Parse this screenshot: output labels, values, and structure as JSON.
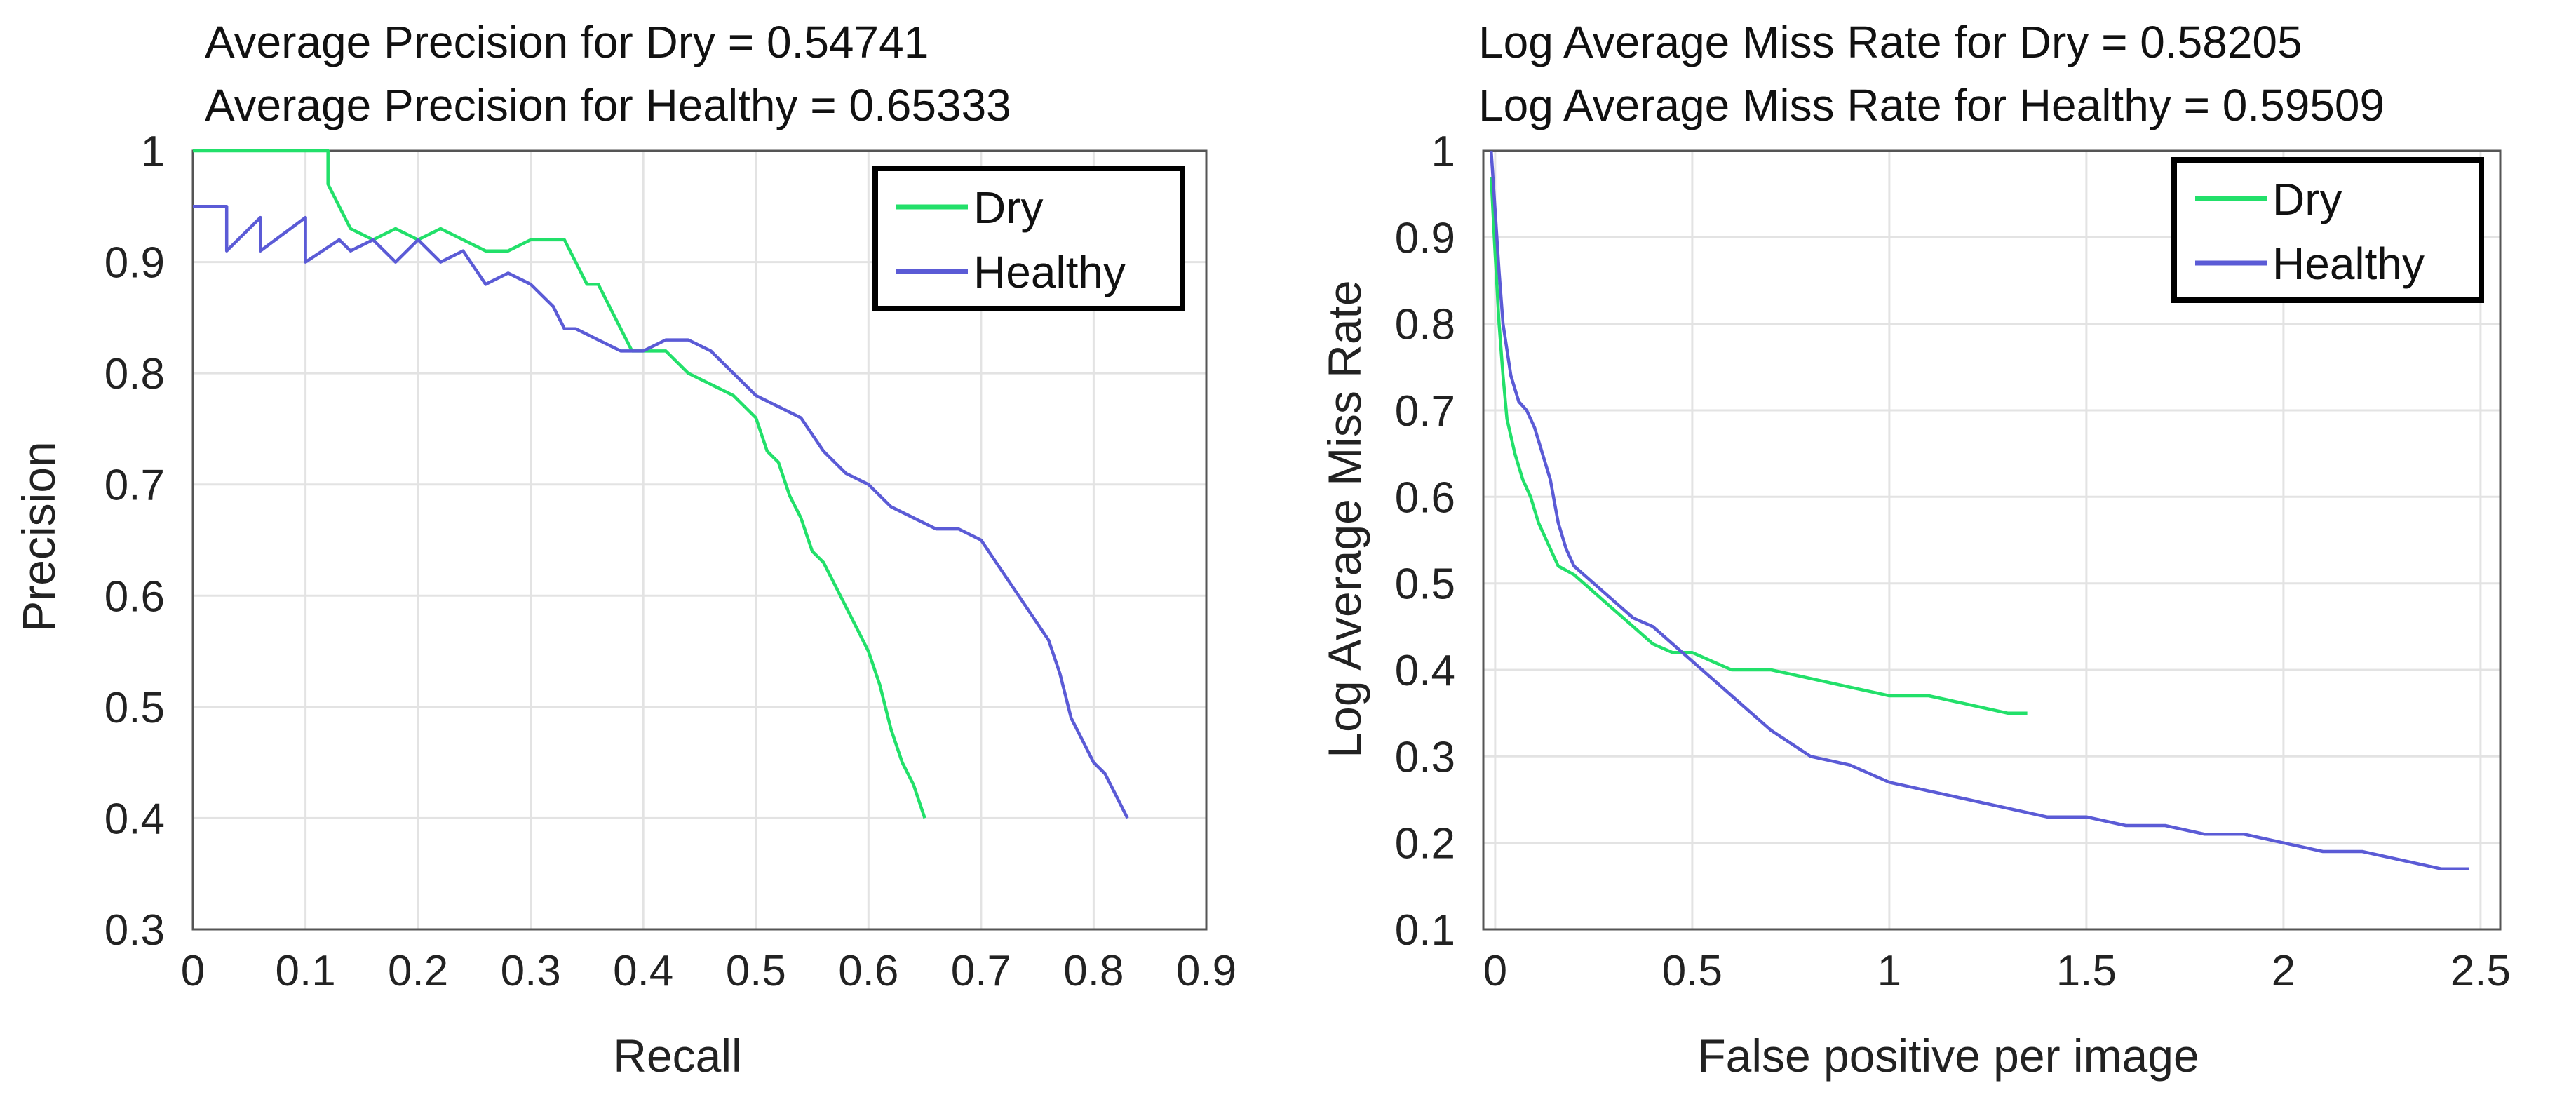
{
  "chart_data": [
    {
      "type": "line",
      "title": [
        "Average Precision for Dry = 0.54741",
        "Average Precision for Healthy = 0.65333"
      ],
      "xlabel": "Recall",
      "ylabel": "Precision",
      "xlim": [
        0,
        0.9
      ],
      "ylim": [
        0.3,
        1
      ],
      "xticks": [
        0,
        0.1,
        0.2,
        0.3,
        0.4,
        0.5,
        0.6,
        0.7,
        0.8,
        0.9
      ],
      "xtick_labels": [
        "0",
        "0.1",
        "0.2",
        "0.3",
        "0.4",
        "0.5",
        "0.6",
        "0.7",
        "0.8",
        "0.9"
      ],
      "yticks": [
        0.3,
        0.4,
        0.5,
        0.6,
        0.7,
        0.8,
        0.9,
        1
      ],
      "ytick_labels": [
        "0.3",
        "0.4",
        "0.5",
        "0.6",
        "0.7",
        "0.8",
        "0.9",
        "1"
      ],
      "grid": true,
      "legend_position": "top-right",
      "series": [
        {
          "name": "Dry",
          "color": "#22e06a",
          "x": [
            0,
            0.12,
            0.12,
            0.13,
            0.14,
            0.16,
            0.18,
            0.2,
            0.22,
            0.24,
            0.26,
            0.28,
            0.3,
            0.33,
            0.34,
            0.35,
            0.36,
            0.37,
            0.38,
            0.39,
            0.4,
            0.42,
            0.44,
            0.46,
            0.48,
            0.49,
            0.5,
            0.51,
            0.52,
            0.53,
            0.54,
            0.55,
            0.56,
            0.57,
            0.58,
            0.59,
            0.6,
            0.61,
            0.62,
            0.63,
            0.64,
            0.65
          ],
          "y": [
            1,
            1,
            0.97,
            0.95,
            0.93,
            0.92,
            0.93,
            0.92,
            0.93,
            0.92,
            0.91,
            0.91,
            0.92,
            0.92,
            0.9,
            0.88,
            0.88,
            0.86,
            0.84,
            0.82,
            0.82,
            0.82,
            0.8,
            0.79,
            0.78,
            0.77,
            0.76,
            0.73,
            0.72,
            0.69,
            0.67,
            0.64,
            0.63,
            0.61,
            0.59,
            0.57,
            0.55,
            0.52,
            0.48,
            0.45,
            0.43,
            0.4
          ]
        },
        {
          "name": "Healthy",
          "color": "#5b5bd6",
          "x": [
            0,
            0.03,
            0.03,
            0.06,
            0.06,
            0.1,
            0.1,
            0.13,
            0.14,
            0.16,
            0.18,
            0.2,
            0.22,
            0.24,
            0.26,
            0.28,
            0.3,
            0.32,
            0.33,
            0.34,
            0.36,
            0.38,
            0.4,
            0.42,
            0.44,
            0.46,
            0.48,
            0.5,
            0.52,
            0.54,
            0.56,
            0.58,
            0.6,
            0.62,
            0.64,
            0.66,
            0.68,
            0.7,
            0.72,
            0.74,
            0.76,
            0.77,
            0.78,
            0.79,
            0.8,
            0.81,
            0.82,
            0.83
          ],
          "y": [
            0.95,
            0.95,
            0.91,
            0.94,
            0.91,
            0.94,
            0.9,
            0.92,
            0.91,
            0.92,
            0.9,
            0.92,
            0.9,
            0.91,
            0.88,
            0.89,
            0.88,
            0.86,
            0.84,
            0.84,
            0.83,
            0.82,
            0.82,
            0.83,
            0.83,
            0.82,
            0.8,
            0.78,
            0.77,
            0.76,
            0.73,
            0.71,
            0.7,
            0.68,
            0.67,
            0.66,
            0.66,
            0.65,
            0.62,
            0.59,
            0.56,
            0.53,
            0.49,
            0.47,
            0.45,
            0.44,
            0.42,
            0.4
          ]
        }
      ]
    },
    {
      "type": "line",
      "title": [
        "Log Average Miss Rate for Dry = 0.58205",
        "Log Average Miss Rate for Healthy = 0.59509"
      ],
      "xlabel": "False positive per image",
      "ylabel": "Log Average Miss Rate",
      "xlim": [
        -0.03,
        2.55
      ],
      "ylim": [
        0.1,
        1
      ],
      "xticks": [
        0,
        0.5,
        1,
        1.5,
        2,
        2.5
      ],
      "xtick_labels": [
        "0",
        "0.5",
        "1",
        "1.5",
        "2",
        "2.5"
      ],
      "yticks": [
        0.1,
        0.2,
        0.3,
        0.4,
        0.5,
        0.6,
        0.7,
        0.8,
        0.9,
        1
      ],
      "ytick_labels": [
        "0.1",
        "0.2",
        "0.3",
        "0.4",
        "0.5",
        "0.6",
        "0.7",
        "0.8",
        "0.9",
        "1"
      ],
      "grid": true,
      "legend_position": "top-right",
      "series": [
        {
          "name": "Dry",
          "color": "#22e06a",
          "x": [
            -0.01,
            0,
            0.01,
            0.02,
            0.03,
            0.05,
            0.07,
            0.09,
            0.11,
            0.13,
            0.16,
            0.2,
            0.25,
            0.3,
            0.35,
            0.4,
            0.45,
            0.5,
            0.55,
            0.6,
            0.7,
            0.8,
            0.9,
            1,
            1.1,
            1.2,
            1.3,
            1.35
          ],
          "y": [
            0.97,
            0.88,
            0.8,
            0.74,
            0.69,
            0.65,
            0.62,
            0.6,
            0.57,
            0.55,
            0.52,
            0.51,
            0.49,
            0.47,
            0.45,
            0.43,
            0.42,
            0.42,
            0.41,
            0.4,
            0.4,
            0.39,
            0.38,
            0.37,
            0.37,
            0.36,
            0.35,
            0.35
          ]
        },
        {
          "name": "Healthy",
          "color": "#5b5bd6",
          "x": [
            -0.01,
            0,
            0.01,
            0.02,
            0.04,
            0.06,
            0.08,
            0.1,
            0.12,
            0.14,
            0.16,
            0.18,
            0.2,
            0.25,
            0.3,
            0.35,
            0.4,
            0.45,
            0.5,
            0.55,
            0.6,
            0.7,
            0.8,
            0.9,
            1,
            1.1,
            1.2,
            1.3,
            1.4,
            1.5,
            1.6,
            1.7,
            1.8,
            1.9,
            2,
            2.1,
            2.2,
            2.3,
            2.4,
            2.47
          ],
          "y": [
            1,
            0.93,
            0.86,
            0.8,
            0.74,
            0.71,
            0.7,
            0.68,
            0.65,
            0.62,
            0.57,
            0.54,
            0.52,
            0.5,
            0.48,
            0.46,
            0.45,
            0.43,
            0.41,
            0.39,
            0.37,
            0.33,
            0.3,
            0.29,
            0.27,
            0.26,
            0.25,
            0.24,
            0.23,
            0.23,
            0.22,
            0.22,
            0.21,
            0.21,
            0.2,
            0.19,
            0.19,
            0.18,
            0.17,
            0.17
          ]
        }
      ]
    }
  ]
}
